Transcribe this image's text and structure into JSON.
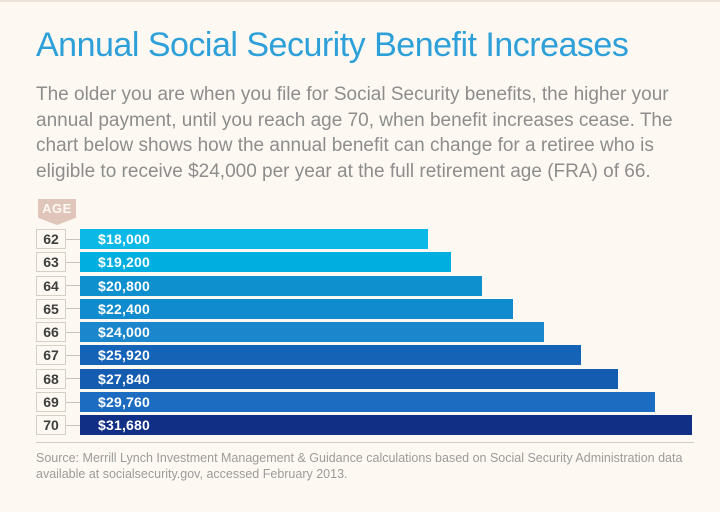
{
  "page": {
    "background_color": "#fdf8f2",
    "accent_color": "#2da0d9"
  },
  "header": {
    "title": "Annual Social Security Benefit Increases",
    "title_color": "#2da0d9",
    "subtitle_lines": [
      "The older you are when you file for Social Security benefits, the higher your",
      "annual payment, until you reach age 70, when benefit increases cease. The",
      "chart below shows how the annual benefit can change for a retiree who is",
      "eligible to receive $24,000 per year at the full retirement age (FRA) of 66."
    ]
  },
  "chart": {
    "age_badge_label": "AGE",
    "age_badge_color": "#dfc5ba",
    "connector_color": "#c9c3ba",
    "age_box_border_color": "#d5cfc6"
  },
  "chart_data": {
    "type": "bar",
    "orientation": "horizontal",
    "title": "Annual Social Security Benefit Increases",
    "axis_label": "AGE",
    "categories": [
      "62",
      "63",
      "64",
      "65",
      "66",
      "67",
      "68",
      "69",
      "70"
    ],
    "values": [
      18000,
      19200,
      20800,
      22400,
      24000,
      25920,
      27840,
      29760,
      31680
    ],
    "value_labels": [
      "$18,000",
      "$19,200",
      "$20,800",
      "$22,400",
      "$24,000",
      "$25,920",
      "$27,840",
      "$29,760",
      "$31,680"
    ],
    "bar_colors": [
      "#0cb9e6",
      "#00afdf",
      "#0e90cf",
      "#108bcd",
      "#1b86cc",
      "#1463b7",
      "#145caf",
      "#1c6cc2",
      "#122f86"
    ],
    "xlim": [
      0,
      31680
    ],
    "grid": false,
    "legend": false,
    "bar_label_position": "inside-left",
    "bar_label_color": "#ffffff"
  },
  "footer": {
    "source_lines": [
      "Source: Merrill Lynch Investment Management & Guidance calculations based on Social Security Administration data",
      "available at socialsecurity.gov, accessed February 2013."
    ]
  }
}
